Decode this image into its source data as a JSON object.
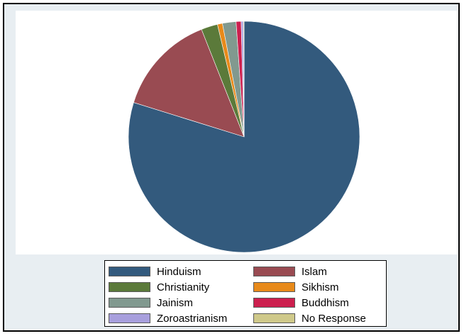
{
  "chart_data": {
    "type": "pie",
    "title": "",
    "slices": [
      {
        "label": "Hinduism",
        "value": 79.8,
        "color": "#335a7d"
      },
      {
        "label": "Islam",
        "value": 14.2,
        "color": "#994b52"
      },
      {
        "label": "Christianity",
        "value": 2.3,
        "color": "#5b7a3a"
      },
      {
        "label": "Sikhism",
        "value": 0.7,
        "color": "#e88a1a"
      },
      {
        "label": "Jainism",
        "value": 1.9,
        "color": "#81998f"
      },
      {
        "label": "Buddhism",
        "value": 0.7,
        "color": "#cc1f4e"
      },
      {
        "label": "Zoroastrianism",
        "value": 0.3,
        "color": "#a89fdd"
      },
      {
        "label": "No Response",
        "value": 0.1,
        "color": "#cfc98a"
      }
    ],
    "start_angle": "top",
    "direction": "clockwise",
    "legend_position": "bottom",
    "legend_columns": 2
  }
}
